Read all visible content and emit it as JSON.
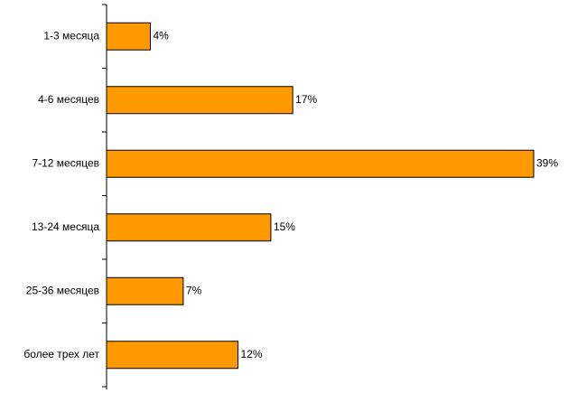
{
  "chart_data": {
    "type": "bar",
    "orientation": "horizontal",
    "categories": [
      "1-3 месяца",
      "4-6 месяцев",
      "7-12 месяцев",
      "13-24 месяца",
      "25-36 месяцев",
      "более трех лет"
    ],
    "values": [
      4,
      17,
      39,
      15,
      7,
      12
    ],
    "value_labels": [
      "4%",
      "17%",
      "39%",
      "15%",
      "7%",
      "12%"
    ],
    "color": "#ff9900"
  }
}
